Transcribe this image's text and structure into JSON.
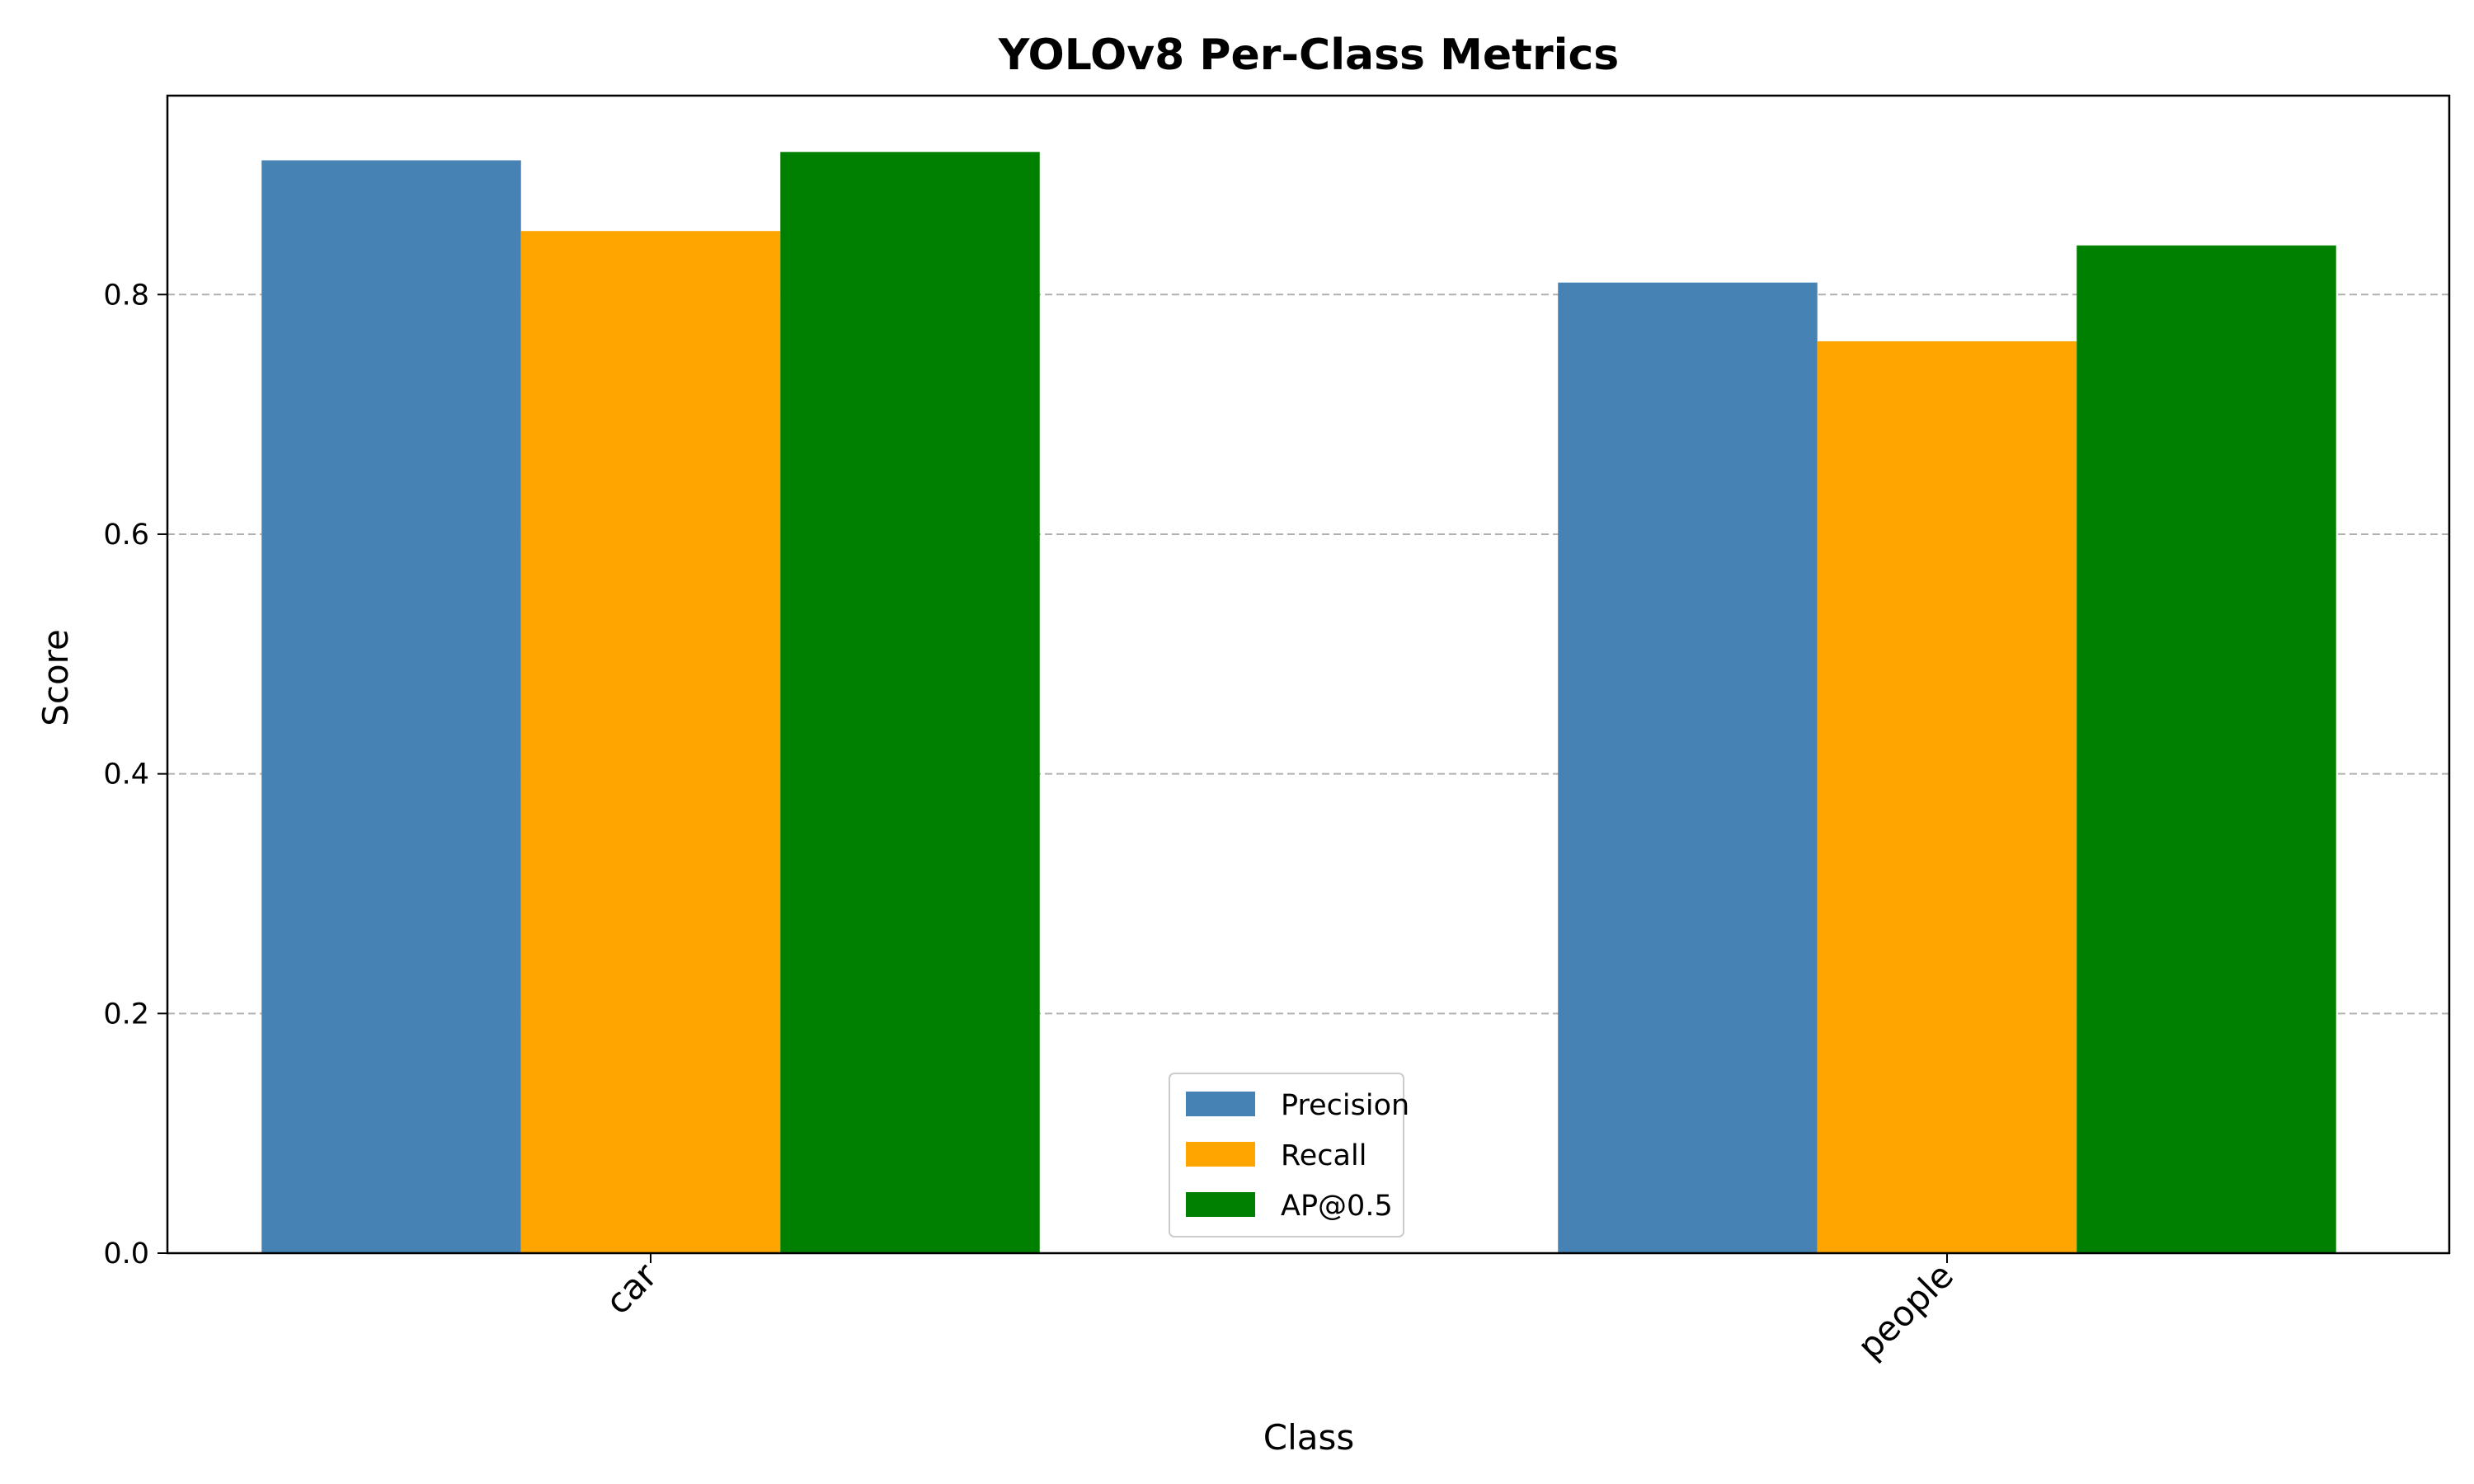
{
  "chart_data": {
    "type": "bar",
    "title": "YOLOv8 Per-Class Metrics",
    "xlabel": "Class",
    "ylabel": "Score",
    "categories": [
      "car",
      "people"
    ],
    "series": [
      {
        "name": "Precision",
        "color": "#4682b4",
        "values": [
          0.912,
          0.81
        ]
      },
      {
        "name": "Recall",
        "color": "#ffa500",
        "values": [
          0.853,
          0.761
        ]
      },
      {
        "name": "AP@0.5",
        "color": "#008000",
        "values": [
          0.919,
          0.841
        ]
      }
    ],
    "ylim": [
      0,
      0.966
    ],
    "yticks": [
      0.0,
      0.2,
      0.4,
      0.6,
      0.8
    ],
    "ytick_labels": [
      "0.0",
      "0.2",
      "0.4",
      "0.6",
      "0.8"
    ],
    "grid": "y-dashed",
    "legend_position": "lower-center",
    "category_label_rotation": -45
  }
}
